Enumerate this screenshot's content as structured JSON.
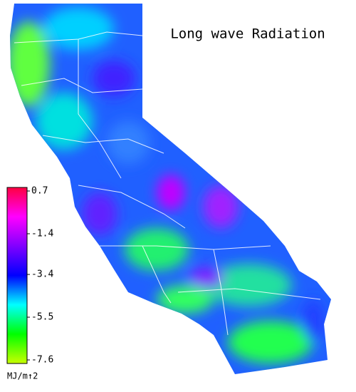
{
  "title": "Long wave Radiation",
  "colorbar": {
    "range": [
      -7.6,
      0.7
    ],
    "ticks": [
      0.7,
      -1.4,
      -3.4,
      -5.5,
      -7.6
    ],
    "unit": "MJ/m↑2",
    "colors": [
      "#c8ff00",
      "#00ff00",
      "#00ffff",
      "#0000ff",
      "#8000ff",
      "#ff00ff",
      "#ff0040"
    ]
  }
}
